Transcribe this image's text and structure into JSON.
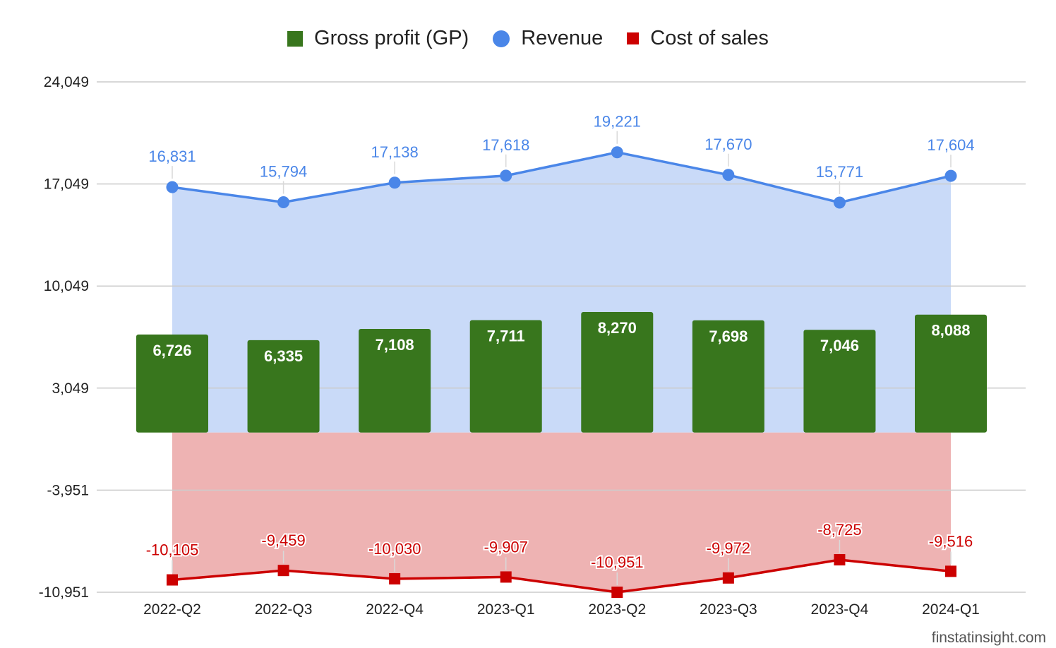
{
  "legend": {
    "gross_profit_label": "Gross profit (GP)",
    "revenue_label": "Revenue",
    "cost_label": "Cost of sales"
  },
  "watermark": "finstatinsight.com",
  "colors": {
    "gross_profit": "#38761d",
    "revenue": "#4a86e8",
    "revenue_fill": "#c9daf8",
    "cost": "#cc0000",
    "cost_fill": "#eeb3b3",
    "grid": "#cccccc"
  },
  "chart_data": {
    "type": "bar",
    "categories": [
      "2022-Q2",
      "2022-Q3",
      "2022-Q4",
      "2023-Q1",
      "2023-Q2",
      "2023-Q3",
      "2023-Q4",
      "2024-Q1"
    ],
    "yticks": [
      "24,049",
      "17,049",
      "10,049",
      "3,049",
      "-3,951",
      "-10,951"
    ],
    "ylim": [
      -10951,
      24049
    ],
    "grid": true,
    "legend_position": "top",
    "series": [
      {
        "name": "Gross profit (GP)",
        "type": "bar",
        "values": [
          6726,
          6335,
          7108,
          7711,
          8270,
          7698,
          7046,
          8088
        ],
        "labels": [
          "6,726",
          "6,335",
          "7,108",
          "7,711",
          "8,270",
          "7,698",
          "7,046",
          "8,088"
        ]
      },
      {
        "name": "Revenue",
        "type": "area-line",
        "values": [
          16831,
          15794,
          17138,
          17618,
          19221,
          17670,
          15771,
          17604
        ],
        "labels": [
          "16,831",
          "15,794",
          "17,138",
          "17,618",
          "19,221",
          "17,670",
          "15,771",
          "17,604"
        ]
      },
      {
        "name": "Cost of sales",
        "type": "area-line",
        "values": [
          -10105,
          -9459,
          -10030,
          -9907,
          -10951,
          -9972,
          -8725,
          -9516
        ],
        "labels": [
          "-10,105",
          "-9,459",
          "-10,030",
          "-9,907",
          "-10,951",
          "-9,972",
          "-8,725",
          "-9,516"
        ]
      }
    ]
  }
}
